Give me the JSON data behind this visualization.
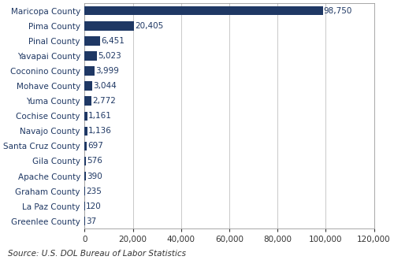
{
  "counties": [
    "Maricopa County",
    "Pima County",
    "Pinal County",
    "Yavapai County",
    "Coconino County",
    "Mohave County",
    "Yuma County",
    "Cochise County",
    "Navajo County",
    "Santa Cruz County",
    "Gila County",
    "Apache County",
    "Graham County",
    "La Paz County",
    "Greenlee County"
  ],
  "values": [
    98750,
    20405,
    6451,
    5023,
    3999,
    3044,
    2772,
    1161,
    1136,
    697,
    576,
    390,
    235,
    120,
    37
  ],
  "bar_color": "#1F3864",
  "label_color": "#1F3864",
  "bg_color": "#ffffff",
  "grid_color": "#c0c0c0",
  "border_color": "#999999",
  "source_text": "Source: U.S. DOL Bureau of Labor Statistics",
  "xlim": [
    0,
    120000
  ],
  "xticks": [
    0,
    20000,
    40000,
    60000,
    80000,
    100000,
    120000
  ],
  "bar_height": 0.6,
  "label_fontsize": 7.5,
  "tick_fontsize": 7.5,
  "source_fontsize": 7.5
}
